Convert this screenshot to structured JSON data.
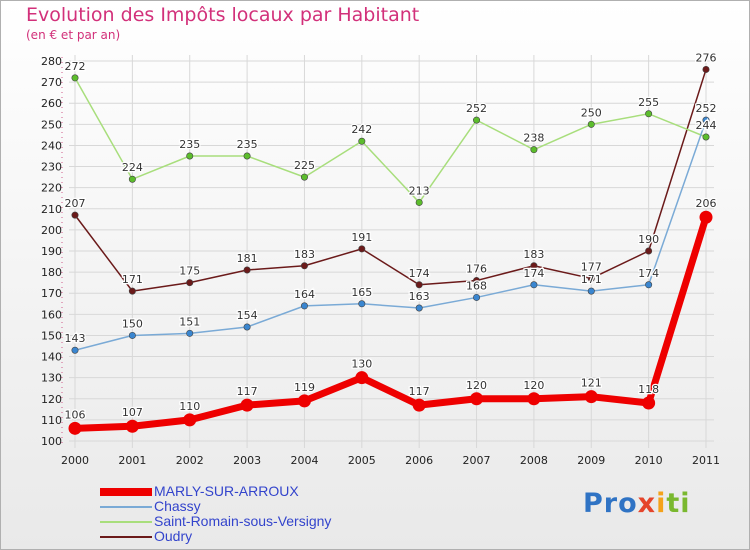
{
  "header": {
    "title": "Evolution des Impôts locaux par Habitant",
    "subtitle": "(en € et par an)"
  },
  "logo": {
    "parts": [
      "Pro",
      "x",
      "i",
      "ti"
    ]
  },
  "colors": {
    "grid": "#d8d8d8",
    "axis_text": "#222222",
    "value_text": "#333333"
  },
  "chart_data": {
    "type": "line",
    "title": "Evolution des Impôts locaux par Habitant",
    "subtitle": "(en € et par an)",
    "x": [
      "2000",
      "2001",
      "2002",
      "2003",
      "2004",
      "2005",
      "2006",
      "2007",
      "2008",
      "2009",
      "2010",
      "2011"
    ],
    "ylim": [
      100,
      280
    ],
    "yticks": [
      100,
      110,
      120,
      130,
      140,
      150,
      160,
      170,
      180,
      190,
      200,
      210,
      220,
      230,
      240,
      250,
      260,
      270,
      280
    ],
    "grid": true,
    "legend_position": "bottom-left",
    "series": [
      {
        "name": "Oudry",
        "color": "#6b1a1a",
        "point_color": "#6b1a1a",
        "values": [
          207,
          171,
          175,
          181,
          183,
          191,
          174,
          176,
          183,
          177,
          190,
          276
        ],
        "labels": [
          "207",
          "171",
          "175",
          "181",
          "183",
          "191",
          "174",
          "176",
          "183",
          "177",
          "190",
          "276"
        ]
      },
      {
        "name": "Saint-Romain-sous-Versigny",
        "color": "#a8de7c",
        "point_color": "#5cbd2c",
        "values": [
          272,
          224,
          235,
          235,
          225,
          242,
          213,
          252,
          238,
          250,
          255,
          244
        ],
        "labels": [
          "272",
          "224",
          "235",
          "235",
          "225",
          "242",
          "213",
          "252",
          "238",
          "250",
          "255",
          "244"
        ]
      },
      {
        "name": "Chassy",
        "color": "#7aaad6",
        "point_color": "#3a86d0",
        "values": [
          143,
          150,
          151,
          154,
          164,
          165,
          163,
          168,
          174,
          171,
          174,
          252
        ],
        "labels": [
          "143",
          "150",
          "151",
          "154",
          "164",
          "165",
          "163",
          "168",
          "174",
          "171",
          "174",
          "252"
        ]
      },
      {
        "name": "MARLY-SUR-ARROUX",
        "color": "#ee0000",
        "point_color": "#ee0000",
        "values": [
          106,
          107,
          110,
          117,
          119,
          130,
          117,
          120,
          120,
          121,
          118,
          206
        ],
        "labels": [
          "106",
          "107",
          "110",
          "117",
          "119",
          "130",
          "117",
          "120",
          "120",
          "121",
          "118",
          "206"
        ]
      }
    ]
  },
  "legend": {
    "items": [
      {
        "label": "MARLY-SUR-ARROUX",
        "color": "#ee0000"
      },
      {
        "label": "Chassy",
        "color": "#7aaad6"
      },
      {
        "label": "Saint-Romain-sous-Versigny",
        "color": "#a8de7c"
      },
      {
        "label": "Oudry",
        "color": "#6b1a1a"
      }
    ]
  }
}
